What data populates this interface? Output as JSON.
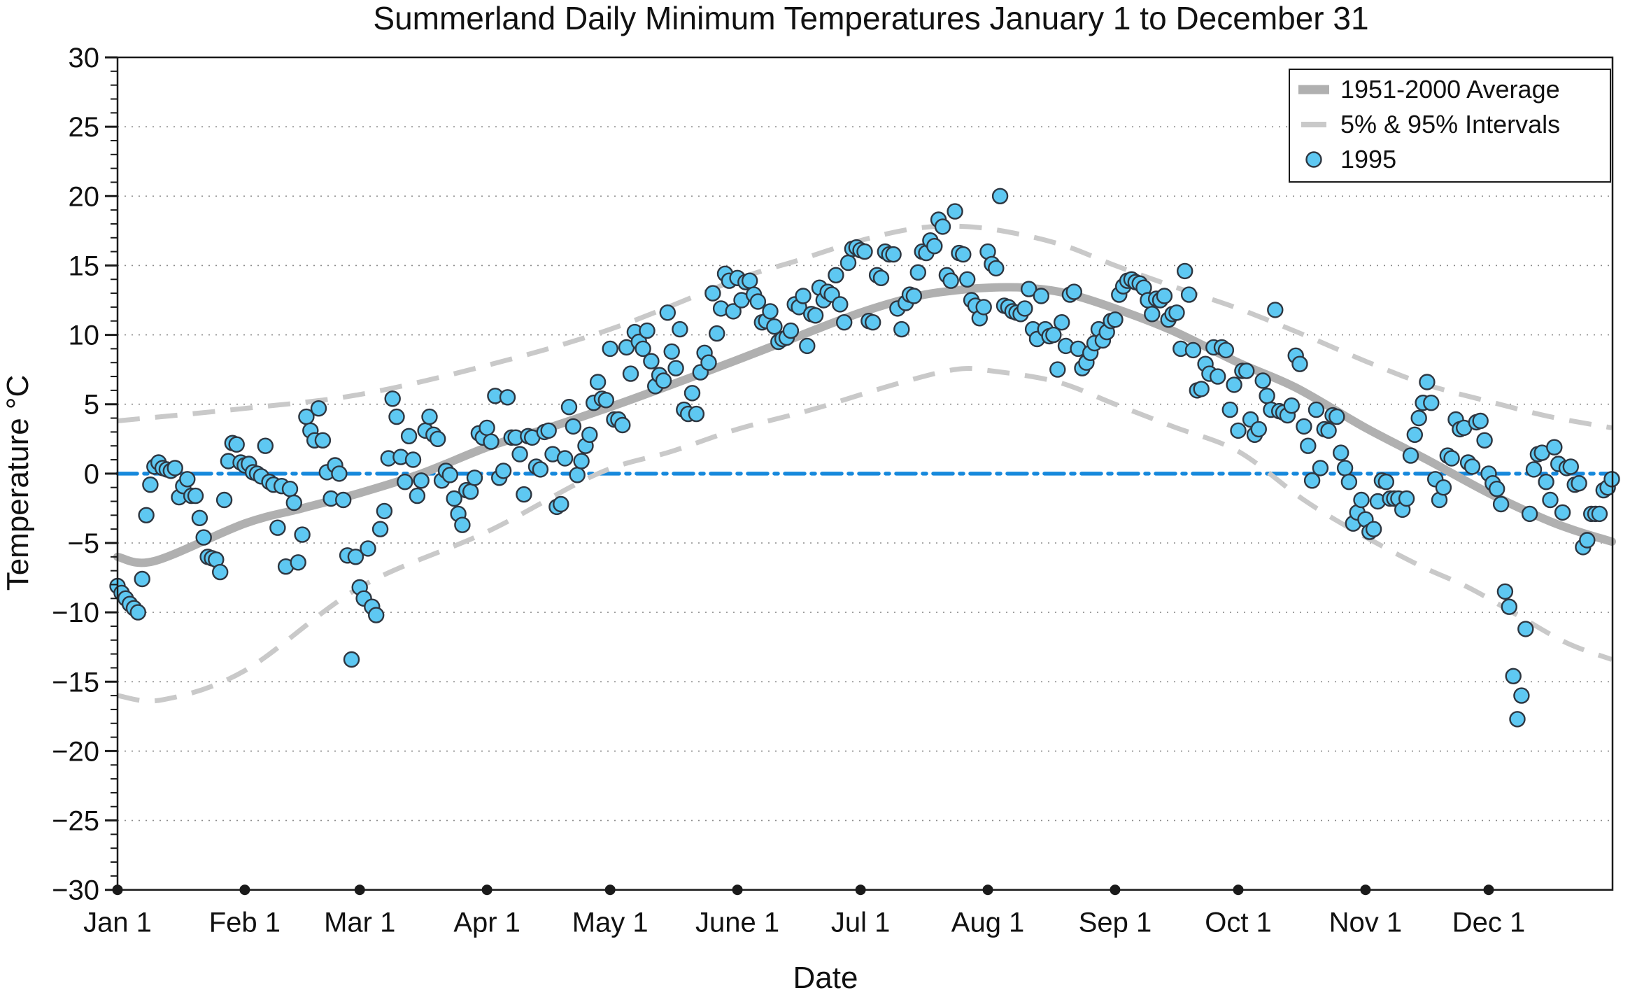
{
  "title": "Summerland Daily Minimum Temperatures January 1 to December 31",
  "axes": {
    "x_label": "Date",
    "y_label": "Temperature °C",
    "y_min": -30,
    "y_max": 30,
    "y_major_step": 5,
    "y_minor_step": 1,
    "y_tick_labels": [
      "30",
      "25",
      "20",
      "15",
      "10",
      "5",
      "0",
      "−5",
      "−10",
      "−15",
      "−20",
      "−25",
      "−30"
    ],
    "y_tick_values": [
      30,
      25,
      20,
      15,
      10,
      5,
      0,
      -5,
      -10,
      -15,
      -20,
      -25,
      -30
    ],
    "x_tick_labels": [
      "Jan 1",
      "Feb 1",
      "Mar 1",
      "Apr 1",
      "May 1",
      "June 1",
      "Jul 1",
      "Aug 1",
      "Sep 1",
      "Oct 1",
      "Nov 1",
      "Dec 1"
    ],
    "x_tick_days": [
      1,
      32,
      60,
      91,
      121,
      152,
      182,
      213,
      244,
      274,
      305,
      335
    ]
  },
  "legend": {
    "items": [
      {
        "label": "1951-2000 Average",
        "type": "thick-line"
      },
      {
        "label": "5% & 95% Intervals",
        "type": "dashed-line"
      },
      {
        "label": "1995",
        "type": "marker"
      }
    ]
  },
  "colors": {
    "scatter_fill": "#5ec8f2",
    "scatter_stroke": "#2e3640",
    "average_line": "#b0b0b0",
    "interval_line": "#c9c9c9",
    "zero_line": "#1789dc",
    "gridline": "#8c8c8c",
    "axis": "#1a1a1a"
  },
  "chart_data": {
    "type": "scatter",
    "title": "Summerland Daily Minimum Temperatures January 1 to December 31",
    "xlabel": "Date",
    "ylabel": "Temperature °C",
    "ylim": [
      -30,
      30
    ],
    "x_unit": "day_of_year",
    "x_range": [
      1,
      365
    ],
    "grid": "horizontal-dotted-every-5",
    "legend_position": "top-right",
    "zero_reference_line": 0,
    "series": [
      {
        "name": "1995",
        "style": "scatter",
        "x_start_day": 1,
        "values": [
          -8.1,
          -8.6,
          -9.0,
          -9.4,
          -9.7,
          -10.0,
          -7.6,
          -3.0,
          -0.8,
          0.5,
          0.8,
          0.4,
          0.3,
          0.2,
          0.4,
          -1.7,
          -0.9,
          -0.4,
          -1.6,
          -1.6,
          -3.2,
          -4.6,
          -6.0,
          -6.1,
          -6.2,
          -7.1,
          -1.9,
          0.9,
          2.2,
          2.1,
          0.8,
          0.6,
          0.7,
          0.1,
          0.0,
          -0.2,
          2.0,
          -0.6,
          -0.8,
          -3.9,
          -0.9,
          -6.7,
          -1.1,
          -2.1,
          -6.4,
          -4.4,
          4.1,
          3.1,
          2.4,
          4.7,
          2.4,
          0.1,
          -1.8,
          0.6,
          0.0,
          -1.9,
          -5.9,
          -13.4,
          -6.0,
          -8.2,
          -9.0,
          -5.4,
          -9.6,
          -10.2,
          -4.0,
          -2.7,
          1.1,
          5.4,
          4.1,
          1.2,
          -0.6,
          2.7,
          1.0,
          -1.6,
          -0.5,
          3.1,
          4.1,
          2.8,
          2.5,
          -0.5,
          0.2,
          -0.1,
          -1.8,
          -2.9,
          -3.7,
          -1.2,
          -1.3,
          -0.3,
          2.9,
          2.6,
          3.3,
          2.3,
          5.6,
          -0.3,
          0.2,
          5.5,
          2.6,
          2.6,
          1.4,
          -1.5,
          2.7,
          2.6,
          0.5,
          0.3,
          3.0,
          3.1,
          1.4,
          -2.4,
          -2.2,
          1.1,
          4.8,
          3.4,
          -0.1,
          0.9,
          2.0,
          2.8,
          5.1,
          6.6,
          5.4,
          5.3,
          9.0,
          3.9,
          3.9,
          3.5,
          9.1,
          7.2,
          10.2,
          9.5,
          9.0,
          10.3,
          8.1,
          6.3,
          7.1,
          6.7,
          11.6,
          8.8,
          7.6,
          10.4,
          4.6,
          4.3,
          5.8,
          4.3,
          7.3,
          8.7,
          8.0,
          13.0,
          10.1,
          11.9,
          14.4,
          13.9,
          11.7,
          14.1,
          12.5,
          13.8,
          13.9,
          12.9,
          12.4,
          10.9,
          11.0,
          11.7,
          10.6,
          9.5,
          9.7,
          9.8,
          10.3,
          12.2,
          12.0,
          12.8,
          9.2,
          11.5,
          11.4,
          13.4,
          12.5,
          13.1,
          12.9,
          14.3,
          12.2,
          10.9,
          15.2,
          16.2,
          16.3,
          16.1,
          16.0,
          11.0,
          10.9,
          14.3,
          14.1,
          16.0,
          15.8,
          15.8,
          11.9,
          10.4,
          12.3,
          12.9,
          12.8,
          14.5,
          16.0,
          15.9,
          16.8,
          16.4,
          18.3,
          17.8,
          14.3,
          13.9,
          18.9,
          15.9,
          15.8,
          14.0,
          12.5,
          12.1,
          11.2,
          12.0,
          16.0,
          15.1,
          14.8,
          20.0,
          12.1,
          12.0,
          11.7,
          11.6,
          11.5,
          11.9,
          13.3,
          10.4,
          9.7,
          12.8,
          10.4,
          9.9,
          10.0,
          7.5,
          10.9,
          9.2,
          12.9,
          13.1,
          9.0,
          7.6,
          8.0,
          8.7,
          9.4,
          10.4,
          9.6,
          10.2,
          11.0,
          11.1,
          12.9,
          13.5,
          13.9,
          14.0,
          13.8,
          13.7,
          13.4,
          12.5,
          11.5,
          12.6,
          12.5,
          12.8,
          11.1,
          11.5,
          11.6,
          9.0,
          14.6,
          12.9,
          8.9,
          6.0,
          6.1,
          7.9,
          7.2,
          9.1,
          7.0,
          9.1,
          8.9,
          4.6,
          6.4,
          3.1,
          7.4,
          7.4,
          3.9,
          2.8,
          3.2,
          6.7,
          5.6,
          4.6,
          11.8,
          4.5,
          4.4,
          4.2,
          4.9,
          8.5,
          7.9,
          3.4,
          2.0,
          -0.5,
          4.6,
          0.4,
          3.2,
          3.1,
          4.2,
          4.1,
          1.5,
          0.4,
          -0.6,
          -3.6,
          -2.8,
          -1.9,
          -3.3,
          -4.2,
          -4.0,
          -2.0,
          -0.5,
          -0.6,
          -1.8,
          -1.8,
          -1.8,
          -2.6,
          -1.8,
          1.3,
          2.8,
          4.0,
          5.1,
          6.6,
          5.1,
          -0.4,
          -1.9,
          -1.0,
          1.3,
          1.1,
          3.9,
          3.2,
          3.3,
          0.8,
          0.5,
          3.7,
          3.8,
          2.4,
          0.0,
          -0.7,
          -1.1,
          -2.2,
          -8.5,
          -9.6,
          -14.6,
          -17.7,
          -16.0,
          -11.2,
          -2.9,
          0.3,
          1.4,
          1.5,
          -0.6,
          -1.9,
          1.9,
          0.7,
          -2.8,
          0.4,
          0.5,
          -0.8,
          -0.7,
          -5.3,
          -4.8,
          -2.9,
          -2.9,
          -2.9,
          -1.2,
          -1.0,
          -0.4
        ]
      },
      {
        "name": "1951-2000 Average",
        "style": "thick-line",
        "points": [
          [
            1,
            -6.0
          ],
          [
            10,
            -6.3
          ],
          [
            32,
            -3.6
          ],
          [
            46,
            -2.5
          ],
          [
            60,
            -1.4
          ],
          [
            75,
            0.0
          ],
          [
            91,
            1.9
          ],
          [
            105,
            3.2
          ],
          [
            121,
            4.8
          ],
          [
            135,
            6.3
          ],
          [
            152,
            8.2
          ],
          [
            166,
            9.8
          ],
          [
            182,
            11.6
          ],
          [
            196,
            12.8
          ],
          [
            205,
            13.2
          ],
          [
            213,
            13.4
          ],
          [
            222,
            13.4
          ],
          [
            232,
            13.0
          ],
          [
            244,
            11.9
          ],
          [
            258,
            10.3
          ],
          [
            274,
            8.0
          ],
          [
            288,
            6.2
          ],
          [
            305,
            3.3
          ],
          [
            320,
            1.0
          ],
          [
            335,
            -1.4
          ],
          [
            348,
            -3.2
          ],
          [
            356,
            -4.1
          ],
          [
            365,
            -4.9
          ]
        ]
      },
      {
        "name": "95% Interval",
        "style": "dashed-line",
        "points": [
          [
            1,
            3.8
          ],
          [
            32,
            4.7
          ],
          [
            60,
            5.7
          ],
          [
            91,
            7.8
          ],
          [
            121,
            10.4
          ],
          [
            152,
            14.0
          ],
          [
            166,
            15.3
          ],
          [
            182,
            16.8
          ],
          [
            196,
            17.7
          ],
          [
            208,
            17.8
          ],
          [
            220,
            17.3
          ],
          [
            232,
            16.4
          ],
          [
            244,
            15.0
          ],
          [
            260,
            13.3
          ],
          [
            274,
            11.9
          ],
          [
            290,
            10.0
          ],
          [
            305,
            8.1
          ],
          [
            320,
            6.4
          ],
          [
            335,
            5.2
          ],
          [
            350,
            4.1
          ],
          [
            365,
            3.3
          ]
        ]
      },
      {
        "name": "5% Interval",
        "style": "dashed-line",
        "points": [
          [
            1,
            -16.0
          ],
          [
            12,
            -16.3
          ],
          [
            32,
            -14.2
          ],
          [
            60,
            -8.2
          ],
          [
            91,
            -4.2
          ],
          [
            118,
            0.0
          ],
          [
            136,
            1.6
          ],
          [
            152,
            3.2
          ],
          [
            170,
            4.6
          ],
          [
            190,
            6.4
          ],
          [
            205,
            7.5
          ],
          [
            214,
            7.4
          ],
          [
            230,
            6.6
          ],
          [
            244,
            5.0
          ],
          [
            258,
            3.4
          ],
          [
            274,
            1.6
          ],
          [
            290,
            -1.9
          ],
          [
            304,
            -4.4
          ],
          [
            318,
            -6.6
          ],
          [
            330,
            -8.2
          ],
          [
            342,
            -10.2
          ],
          [
            354,
            -12.2
          ],
          [
            365,
            -13.4
          ]
        ]
      }
    ]
  }
}
